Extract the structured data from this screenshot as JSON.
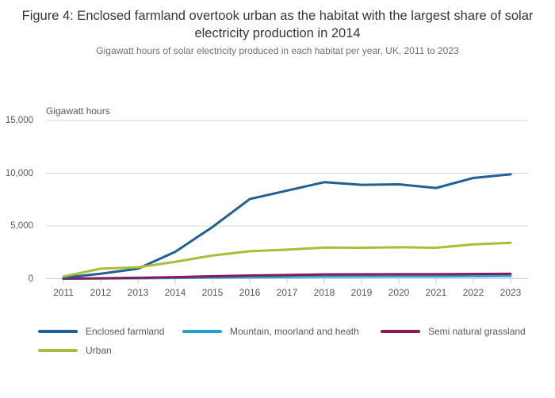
{
  "chart_data": {
    "type": "line",
    "title": "Figure 4: Enclosed farmland overtook urban as the habitat with the largest share of solar electricity production in 2014",
    "subtitle": "Gigawatt hours of solar electricity produced in each habitat per year, UK, 2011 to 2023",
    "y_axis_title": "Gigawatt hours",
    "x": [
      2011,
      2012,
      2013,
      2014,
      2015,
      2016,
      2017,
      2018,
      2019,
      2020,
      2021,
      2022,
      2023
    ],
    "series": [
      {
        "name": "Enclosed farmland",
        "color": "#206095",
        "values": [
          90,
          470,
          950,
          2550,
          4900,
          7550,
          8350,
          9150,
          8900,
          8950,
          8600,
          9550,
          9900
        ]
      },
      {
        "name": "Mountain, moorland and heath",
        "color": "#27a0cc",
        "values": [
          5,
          15,
          35,
          70,
          110,
          140,
          170,
          200,
          210,
          215,
          215,
          235,
          255
        ]
      },
      {
        "name": "Semi natural grassland",
        "color": "#871a5b",
        "values": [
          10,
          40,
          80,
          140,
          230,
          300,
          350,
          400,
          410,
          420,
          420,
          440,
          460
        ]
      },
      {
        "name": "Urban",
        "color": "#a8bd3a",
        "values": [
          200,
          950,
          1080,
          1600,
          2200,
          2600,
          2750,
          2950,
          2930,
          2980,
          2930,
          3250,
          3400
        ]
      }
    ],
    "y_ticks": [
      {
        "value": 0,
        "label": "0"
      },
      {
        "value": 5000,
        "label": "5,000"
      },
      {
        "value": 10000,
        "label": "10,000"
      },
      {
        "value": 15000,
        "label": "15,000"
      }
    ],
    "ylim": [
      0,
      15000
    ],
    "xlim": [
      2011,
      2023
    ],
    "grid": "horizontal",
    "legend_position": "bottom-left, two rows",
    "colors": {
      "gridline": "#d9d9d9",
      "axis_line": "#b9cfe0",
      "tick": "#b9cfe0",
      "tick_text": "#58585b",
      "title_text": "#363636",
      "subtitle_text": "#707071"
    }
  }
}
